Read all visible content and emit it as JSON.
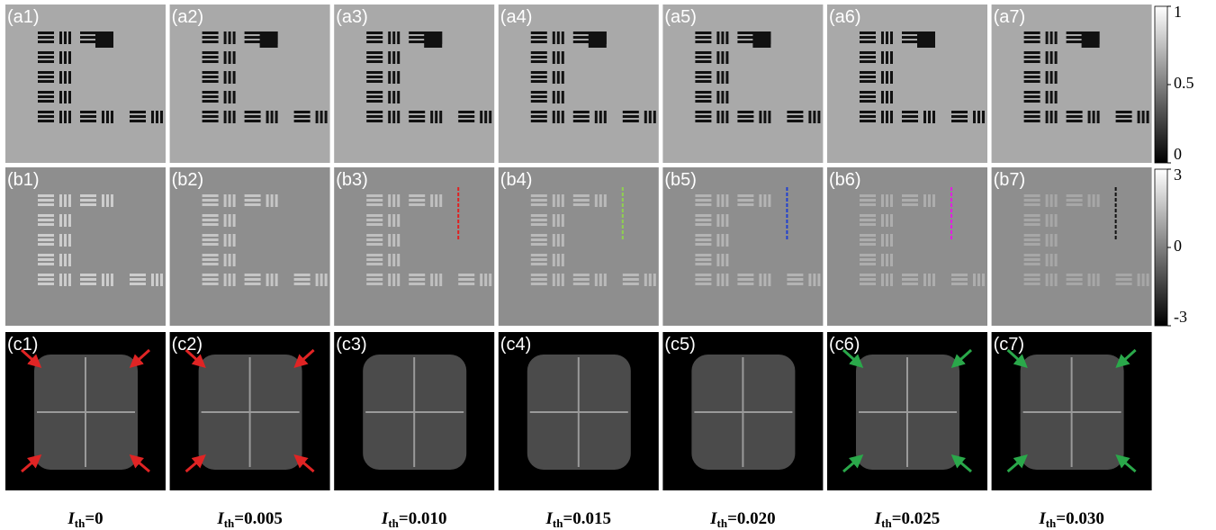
{
  "panels": [
    [
      "(a1)",
      "(a2)",
      "(a3)",
      "(a4)",
      "(a5)",
      "(a6)",
      "(a7)"
    ],
    [
      "(b1)",
      "(b2)",
      "(b3)",
      "(b4)",
      "(b5)",
      "(b6)",
      "(b7)"
    ],
    [
      "(c1)",
      "(c2)",
      "(c3)",
      "(c4)",
      "(c5)",
      "(c6)",
      "(c7)"
    ]
  ],
  "colorbars": [
    {
      "lim": [
        0,
        1
      ],
      "ticks": [
        1,
        0.5,
        0
      ]
    },
    {
      "lim": [
        -3,
        3
      ],
      "ticks": [
        3,
        0,
        -3
      ]
    }
  ],
  "captions": [
    {
      "symbol": "I",
      "subscript": "th",
      "rest": "=0"
    },
    {
      "symbol": "I",
      "subscript": "th",
      "rest": "=0.005"
    },
    {
      "symbol": "I",
      "subscript": "th",
      "rest": "=0.010"
    },
    {
      "symbol": "I",
      "subscript": "th",
      "rest": "=0.015"
    },
    {
      "symbol": "I",
      "subscript": "th",
      "rest": "=0.020"
    },
    {
      "symbol": "I",
      "subscript": "th",
      "rest": "=0.025"
    },
    {
      "symbol": "I",
      "subscript": "th",
      "rest": "=0.030"
    }
  ]
}
